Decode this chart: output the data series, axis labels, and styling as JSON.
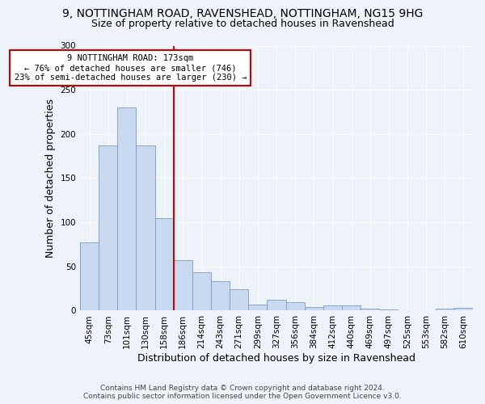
{
  "title_line1": "9, NOTTINGHAM ROAD, RAVENSHEAD, NOTTINGHAM, NG15 9HG",
  "title_line2": "Size of property relative to detached houses in Ravenshead",
  "xlabel": "Distribution of detached houses by size in Ravenshead",
  "ylabel": "Number of detached properties",
  "footnote": "Contains HM Land Registry data © Crown copyright and database right 2024.\nContains public sector information licensed under the Open Government Licence v3.0.",
  "categories": [
    "45sqm",
    "73sqm",
    "101sqm",
    "130sqm",
    "158sqm",
    "186sqm",
    "214sqm",
    "243sqm",
    "271sqm",
    "299sqm",
    "327sqm",
    "356sqm",
    "384sqm",
    "412sqm",
    "440sqm",
    "469sqm",
    "497sqm",
    "525sqm",
    "553sqm",
    "582sqm",
    "610sqm"
  ],
  "values": [
    77,
    187,
    230,
    187,
    105,
    57,
    43,
    33,
    24,
    7,
    12,
    10,
    4,
    6,
    6,
    2,
    1,
    0,
    0,
    2,
    3
  ],
  "bar_color": "#c9d9f0",
  "bar_edge_color": "#7a9cc7",
  "vline_x_idx": 4.5,
  "vline_color": "#cc0000",
  "annotation_text": "9 NOTTINGHAM ROAD: 173sqm\n← 76% of detached houses are smaller (746)\n23% of semi-detached houses are larger (230) →",
  "annotation_box_color": "#ffffff",
  "annotation_box_edge": "#cc0000",
  "ylim": [
    0,
    300
  ],
  "yticks": [
    0,
    50,
    100,
    150,
    200,
    250,
    300
  ],
  "background_color": "#eef2f9",
  "grid_color": "#ffffff",
  "title_fontsize": 10,
  "subtitle_fontsize": 9,
  "axis_label_fontsize": 9,
  "tick_fontsize": 7.5,
  "footnote_fontsize": 6.5
}
